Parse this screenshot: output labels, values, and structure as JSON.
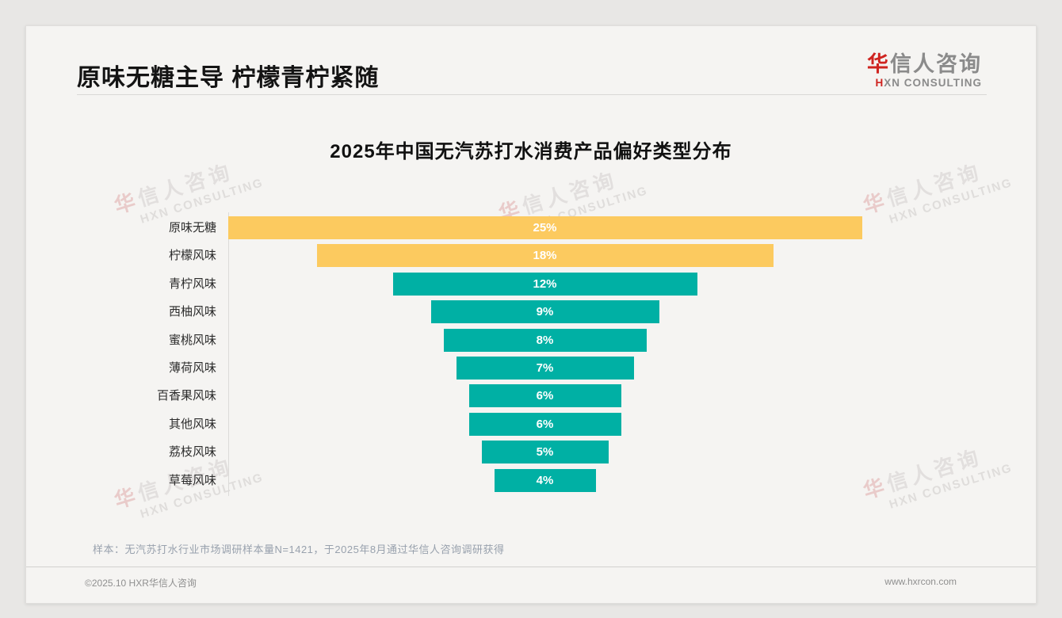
{
  "page": {
    "main_title": "原味无糖主导 柠檬青柠紧随",
    "logo": {
      "zh_accent": "华",
      "zh_rest": "信人咨询",
      "en_accent": "H",
      "en_rest": "XN CONSULTING"
    },
    "sample_note": "样本：无汽苏打水行业市场调研样本量N=1421，于2025年8月通过华信人咨询调研获得",
    "footer_left": "©2025.10 HXR华信人咨询",
    "footer_right": "www.hxrcon.com",
    "watermark": {
      "zh_accent": "华",
      "zh_rest": "信人咨询",
      "en": "HXN CONSULTING"
    }
  },
  "chart_data": {
    "type": "bar",
    "variant": "centered-funnel",
    "title": "2025年中国无汽苏打水消费产品偏好类型分布",
    "categories": [
      "原味无糖",
      "柠檬风味",
      "青柠风味",
      "西柚风味",
      "蜜桃风味",
      "薄荷风味",
      "百香果风味",
      "其他风味",
      "荔枝风味",
      "草莓风味"
    ],
    "values": [
      25,
      18,
      12,
      9,
      8,
      7,
      6,
      6,
      5,
      4
    ],
    "unit": "%",
    "xlabel": "",
    "ylabel": "",
    "xlim": [
      0,
      25
    ],
    "grid": false,
    "legend": "none",
    "bar_colors": {
      "highlight": "#fcca5f",
      "default": "#00b0a4",
      "highlight_count": 2
    },
    "value_label_color": "#ffffff"
  }
}
